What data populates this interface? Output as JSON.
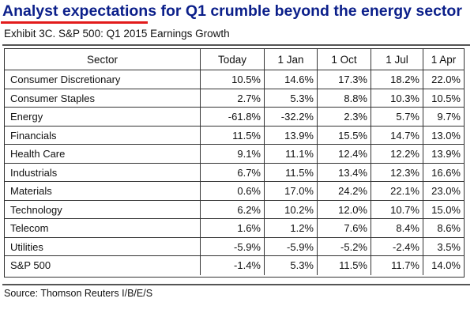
{
  "headline": "Analyst expectations for Q1 crumble beyond the energy sector",
  "exhibit_title": "Exhibit 3C.  S&P 500: Q1 2015 Earnings Growth",
  "source": "Source: Thomson Reuters I/B/E/S",
  "colors": {
    "headline": "#0b1f8a",
    "headline_rule": "#e21b1b",
    "grid": "#333333"
  },
  "chart_data": {
    "type": "table",
    "title": "Exhibit 3C.  S&P 500: Q1 2015 Earnings Growth",
    "columns": [
      "Sector",
      "Today",
      "1 Jan",
      "1 Oct",
      "1 Jul",
      "1 Apr"
    ],
    "rows": [
      [
        "Consumer Discretionary",
        "10.5%",
        "14.6%",
        "17.3%",
        "18.2%",
        "22.0%"
      ],
      [
        "Consumer Staples",
        "2.7%",
        "5.3%",
        "8.8%",
        "10.3%",
        "10.5%"
      ],
      [
        "Energy",
        "-61.8%",
        "-32.2%",
        "2.3%",
        "5.7%",
        "9.7%"
      ],
      [
        "Financials",
        "11.5%",
        "13.9%",
        "15.5%",
        "14.7%",
        "13.0%"
      ],
      [
        "Health Care",
        "9.1%",
        "11.1%",
        "12.4%",
        "12.2%",
        "13.9%"
      ],
      [
        "Industrials",
        "6.7%",
        "11.5%",
        "13.4%",
        "12.3%",
        "16.6%"
      ],
      [
        "Materials",
        "0.6%",
        "17.0%",
        "24.2%",
        "22.1%",
        "23.0%"
      ],
      [
        "Technology",
        "6.2%",
        "10.2%",
        "12.0%",
        "10.7%",
        "15.0%"
      ],
      [
        "Telecom",
        "1.6%",
        "1.2%",
        "7.6%",
        "8.4%",
        "8.6%"
      ],
      [
        "Utilities",
        "-5.9%",
        "-5.9%",
        "-5.2%",
        "-2.4%",
        "3.5%"
      ],
      [
        "S&P 500",
        "-1.4%",
        "5.3%",
        "11.5%",
        "11.7%",
        "14.0%"
      ]
    ]
  }
}
